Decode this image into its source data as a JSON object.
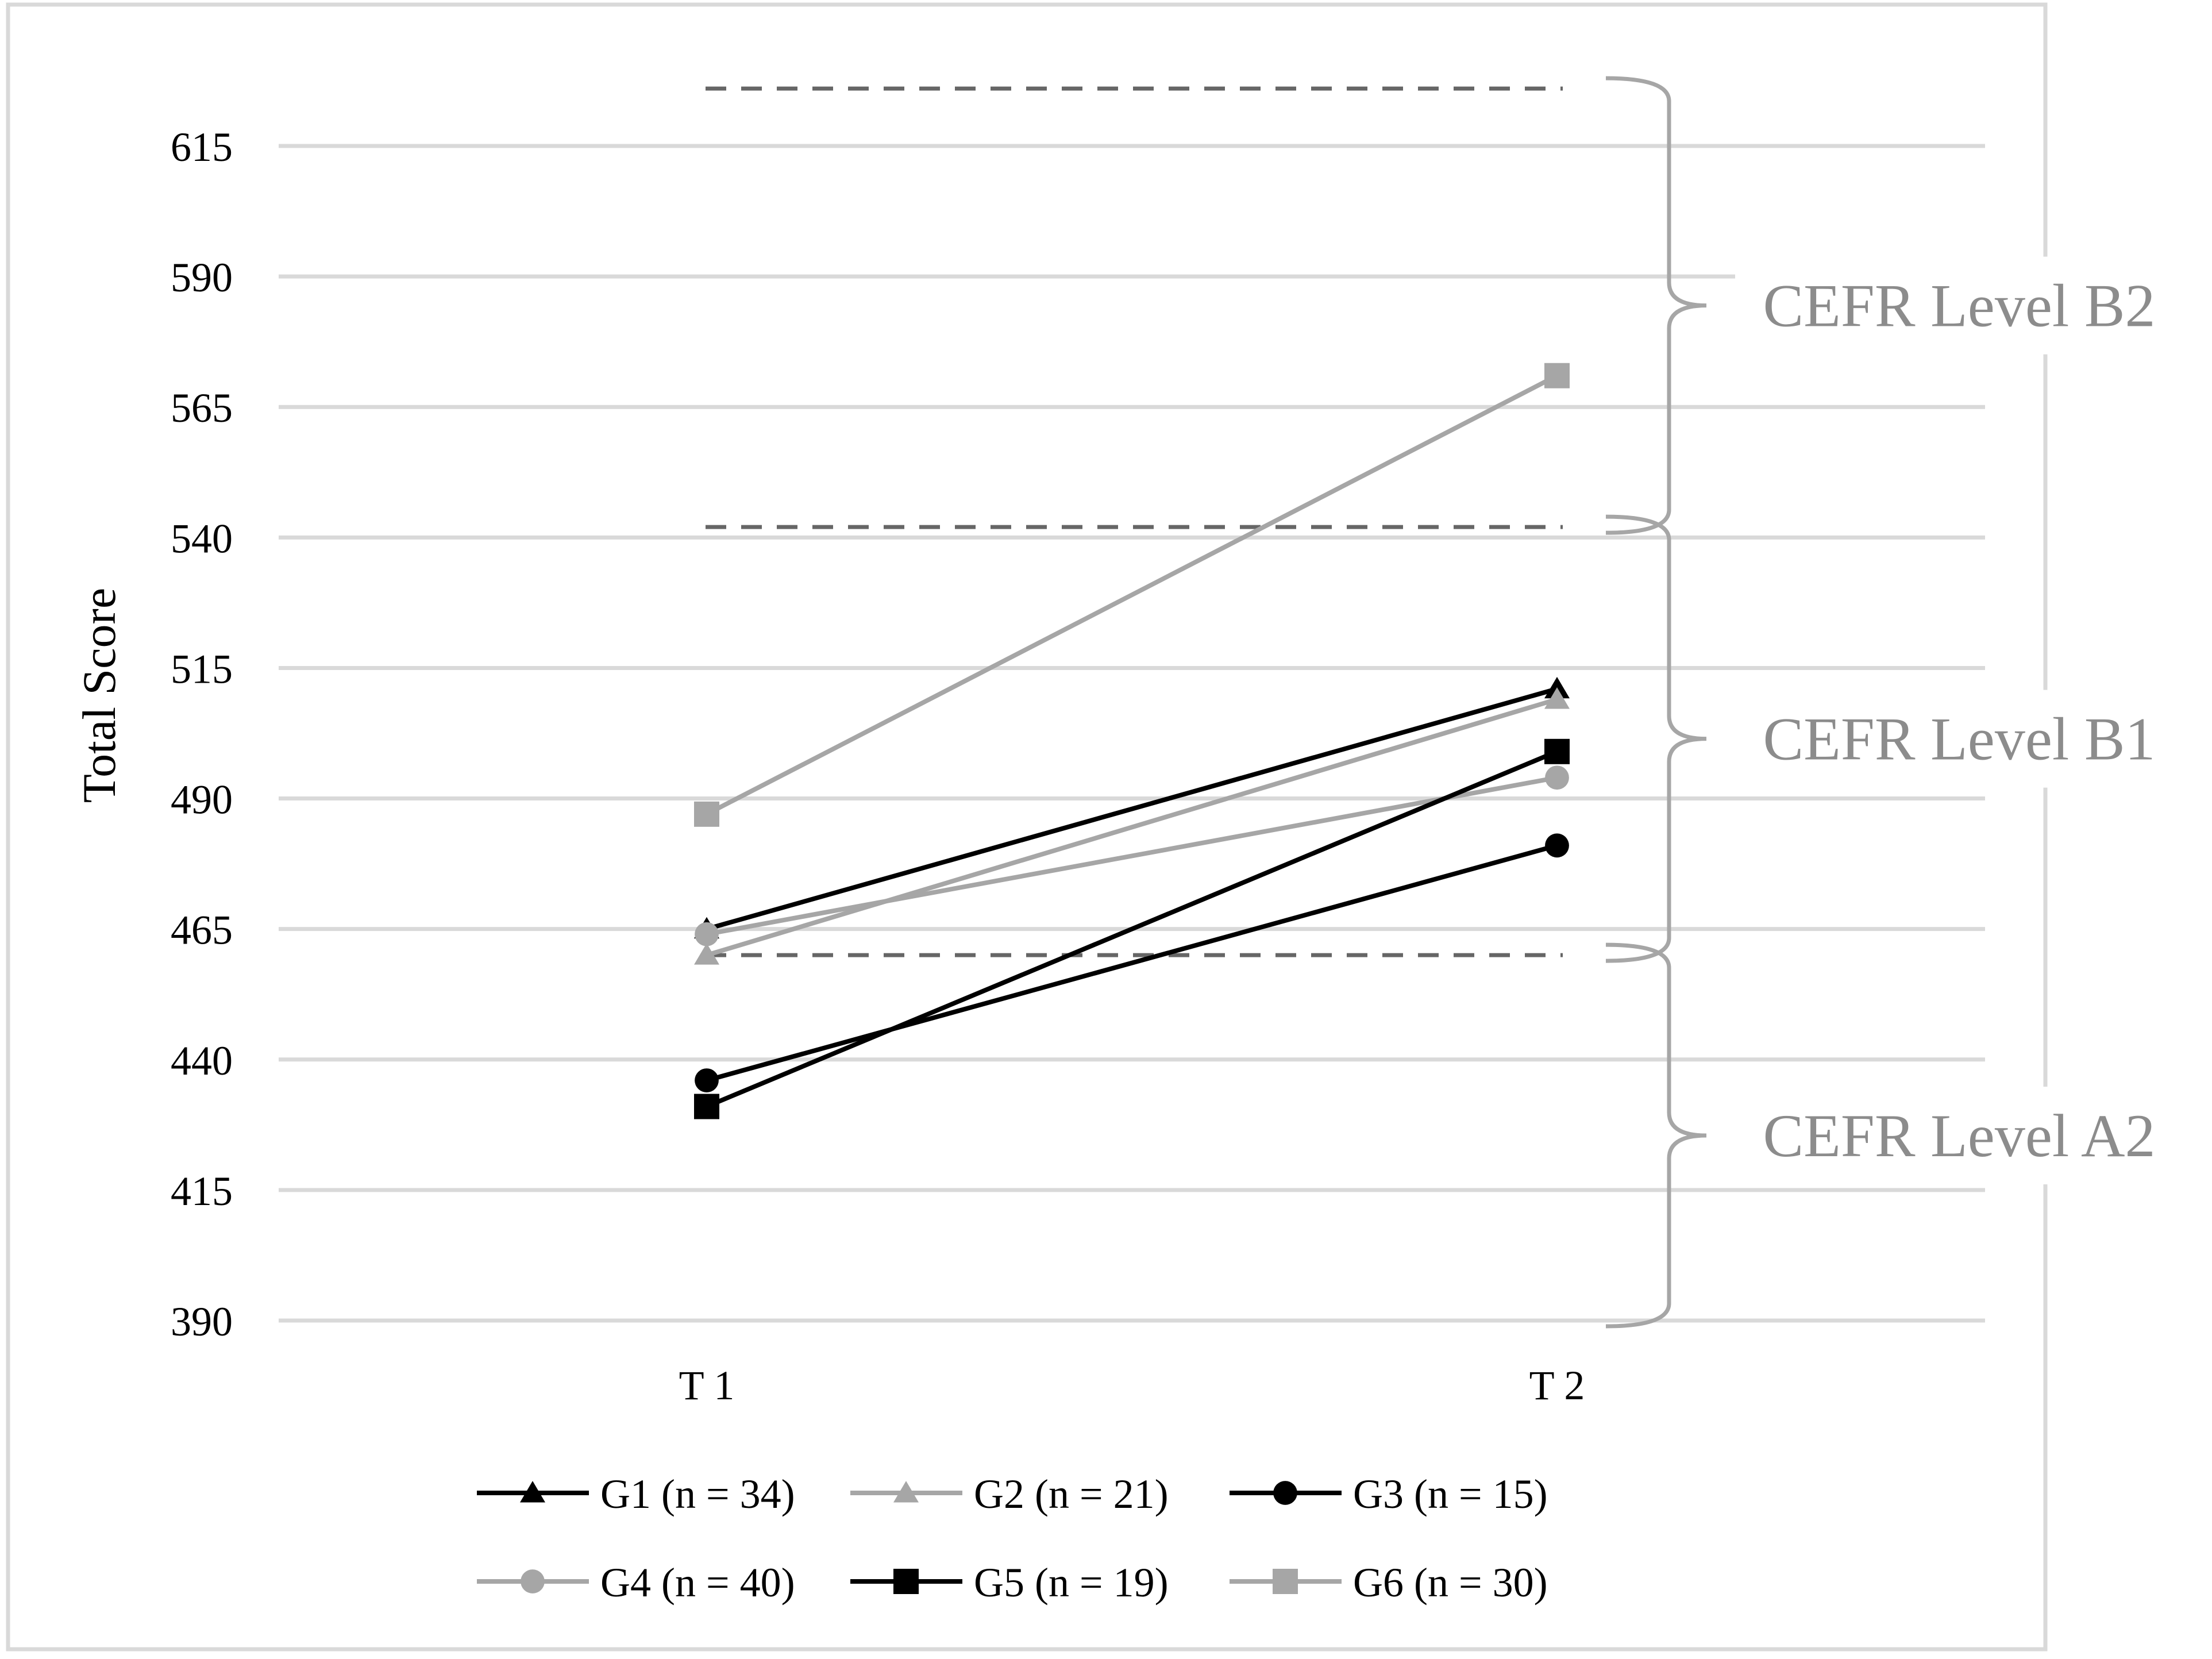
{
  "chart_data": {
    "type": "line",
    "title": "",
    "xlabel": "",
    "ylabel": "Total Score",
    "categories": [
      "T 1",
      "T 2"
    ],
    "ylim": [
      390,
      615
    ],
    "yticks": [
      390,
      415,
      440,
      465,
      490,
      515,
      540,
      565,
      590,
      615
    ],
    "grid": true,
    "legend_position": "bottom",
    "series": [
      {
        "name": "G1 (n = 34)",
        "values": [
          465,
          511
        ],
        "color": "#000000",
        "marker": "triangle"
      },
      {
        "name": "G2 (n = 21)",
        "values": [
          460,
          509
        ],
        "color": "#a6a6a6",
        "marker": "triangle"
      },
      {
        "name": "G3 (n = 15)",
        "values": [
          436,
          481
        ],
        "color": "#000000",
        "marker": "circle"
      },
      {
        "name": "G4 (n = 40)",
        "values": [
          464,
          494
        ],
        "color": "#a6a6a6",
        "marker": "circle"
      },
      {
        "name": "G5 (n = 19)",
        "values": [
          431,
          499
        ],
        "color": "#000000",
        "marker": "square"
      },
      {
        "name": "G6 (n = 30)",
        "values": [
          487,
          571
        ],
        "color": "#a6a6a6",
        "marker": "square"
      }
    ],
    "thresholds": [
      {
        "value": 626
      },
      {
        "value": 542
      },
      {
        "value": 460
      }
    ],
    "bands": [
      {
        "label": "CEFR Level B2",
        "from": 542,
        "to": 626
      },
      {
        "label": "CEFR Level B1",
        "from": 460,
        "to": 542
      },
      {
        "label": "CEFR Level A2",
        "from": 390,
        "to": 460
      }
    ],
    "colors": {
      "grid": "#d9d9d9",
      "threshold": "#666666",
      "brace": "#a6a6a6",
      "band_label": "#8c8c8c",
      "frame": "#d9d9d9"
    }
  }
}
